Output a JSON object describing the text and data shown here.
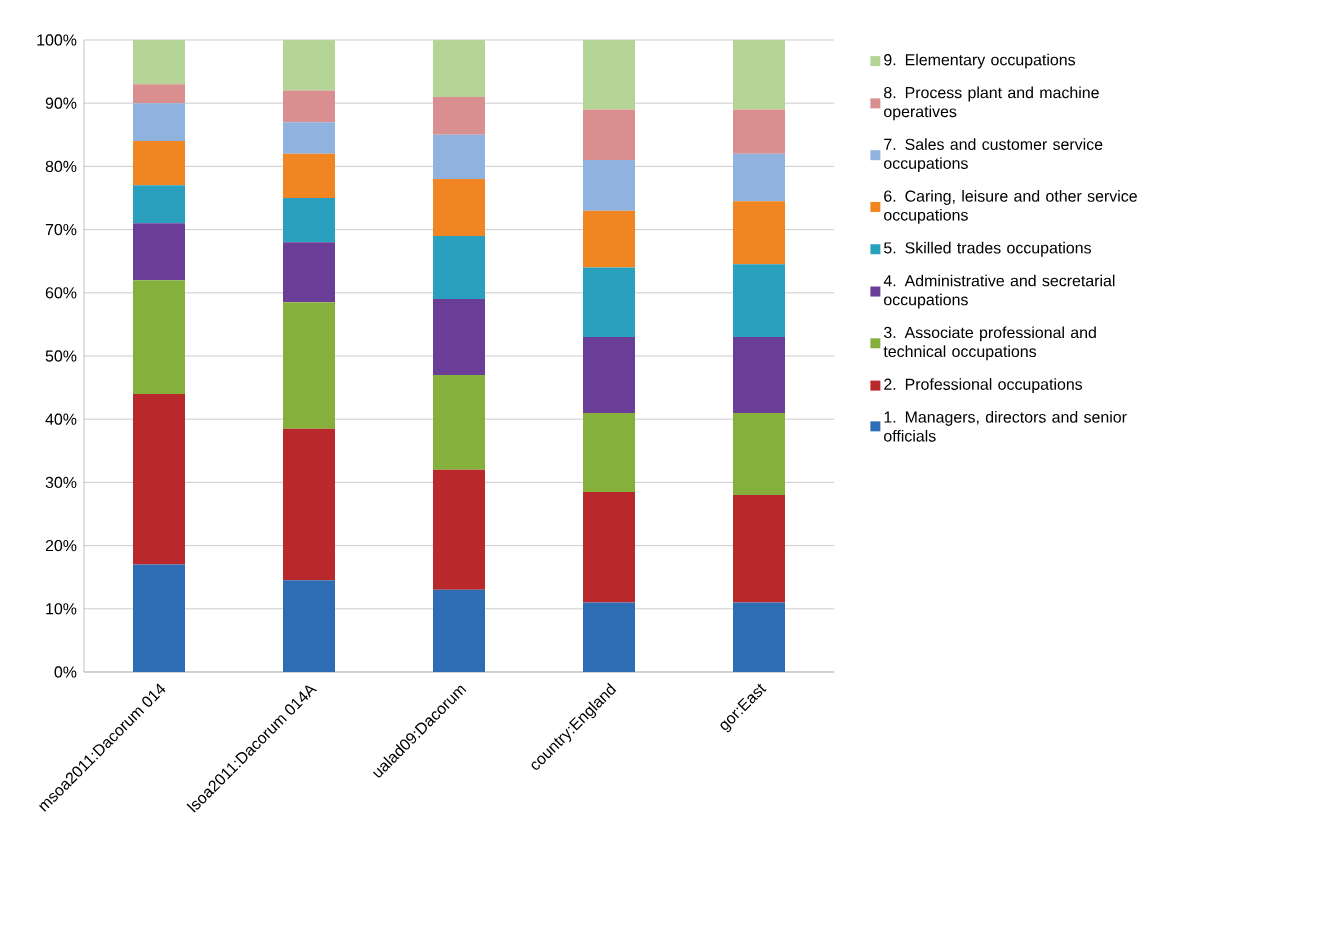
{
  "chart_data": {
    "type": "bar",
    "stacked": true,
    "categories": [
      "msoa2011:Dacorum 014",
      "lsoa2011:Dacorum 014A",
      "ualad09:Dacorum",
      "country:England",
      "gor:East"
    ],
    "series": [
      {
        "name": "1. Managers, directors and senior officials",
        "color": "#2e6db4",
        "values": [
          17,
          14.5,
          13,
          11,
          11
        ]
      },
      {
        "name": "2. Professional occupations",
        "color": "#b9282a",
        "values": [
          27,
          24,
          19,
          17.5,
          17
        ]
      },
      {
        "name": "3. Associate professional and technical occupations",
        "color": "#86b03c",
        "values": [
          18,
          20,
          15,
          12.5,
          13
        ]
      },
      {
        "name": "4. Administrative and secretarial occupations",
        "color": "#6a3d96",
        "values": [
          9,
          9.5,
          12,
          12,
          12
        ]
      },
      {
        "name": "5. Skilled trades occupations",
        "color": "#2aa0bf",
        "values": [
          6,
          7,
          10,
          11,
          11.5
        ]
      },
      {
        "name": "6. Caring, leisure and other service occupations",
        "color": "#f08522",
        "values": [
          7,
          7,
          9,
          9,
          10
        ]
      },
      {
        "name": "7. Sales and customer service occupations",
        "color": "#8fb2de",
        "values": [
          6,
          5,
          7,
          8,
          7.5
        ]
      },
      {
        "name": "8. Process plant and machine operatives",
        "color": "#d98f8f",
        "values": [
          3,
          5,
          6,
          8,
          7
        ]
      },
      {
        "name": "9. Elementary occupations",
        "color": "#b5d596",
        "values": [
          7,
          8,
          9,
          11,
          11
        ]
      }
    ],
    "ylim": [
      0,
      100
    ],
    "yticks": [
      {
        "value": 0,
        "label": "0%"
      },
      {
        "value": 10,
        "label": "10%"
      },
      {
        "value": 20,
        "label": "20%"
      },
      {
        "value": 30,
        "label": "30%"
      },
      {
        "value": 40,
        "label": "40%"
      },
      {
        "value": 50,
        "label": "50%"
      },
      {
        "value": 60,
        "label": "60%"
      },
      {
        "value": 70,
        "label": "70%"
      },
      {
        "value": 80,
        "label": "80%"
      },
      {
        "value": 90,
        "label": "90%"
      },
      {
        "value": 100,
        "label": "100%"
      }
    ],
    "grid": "y",
    "legend": "right"
  }
}
